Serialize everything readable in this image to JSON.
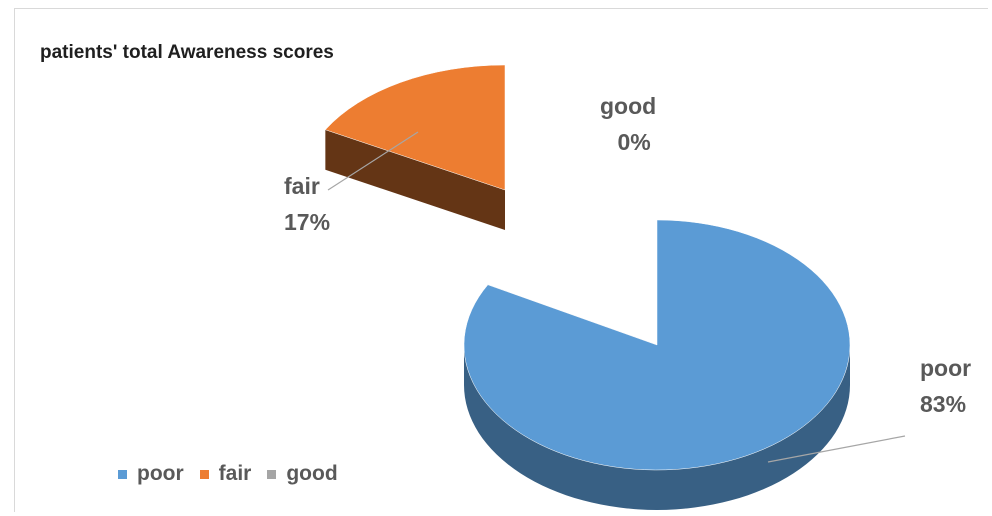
{
  "chart_data": {
    "type": "pie",
    "title": "patients' total Awareness scores",
    "categories": [
      "poor",
      "fair",
      "good"
    ],
    "values": [
      83,
      17,
      0
    ],
    "labels": [
      "poor\n83%",
      "fair\n17%",
      "good\n0%"
    ],
    "colors": [
      "#5b9bd5",
      "#ed7d31",
      "#a5a5a5"
    ],
    "legend": "bottom-left",
    "style": "3d-exploded"
  },
  "legend": [
    {
      "label": "poor",
      "color": "#5b9bd5"
    },
    {
      "label": "fair",
      "color": "#ed7d31"
    },
    {
      "label": "good",
      "color": "#a5a5a5"
    }
  ],
  "data_labels": {
    "poor": {
      "name": "poor",
      "pct": "83%"
    },
    "fair": {
      "name": "fair",
      "pct": "17%"
    },
    "good": {
      "name": "good",
      "pct": "0%"
    }
  }
}
